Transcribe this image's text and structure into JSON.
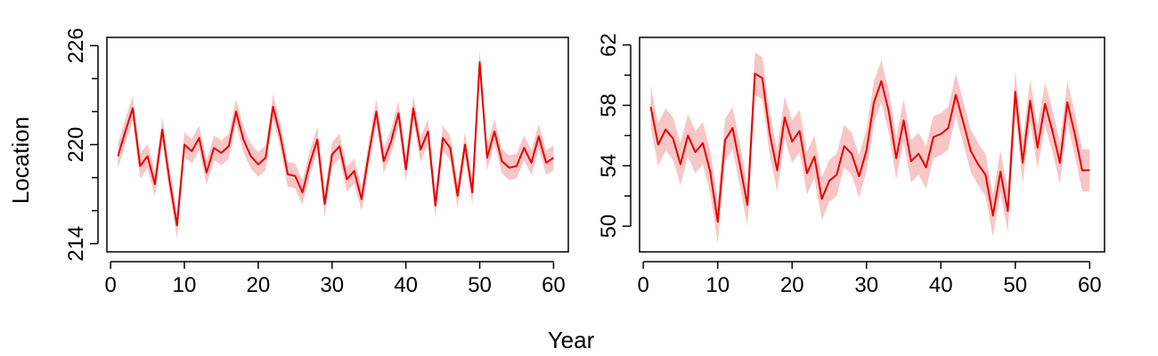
{
  "shared": {
    "xlabel": "Year",
    "ylabel": "Location"
  },
  "colors": {
    "line": "#e60000",
    "band": "#f8c6c6",
    "axis": "#000000"
  },
  "chart_data": [
    {
      "type": "line",
      "title": "",
      "xlabel": "Year",
      "ylabel": "Location",
      "xlim": [
        1,
        60
      ],
      "ylim": [
        213.5,
        226.5
      ],
      "x_ticks": [
        0,
        10,
        20,
        30,
        40,
        50,
        60
      ],
      "y_ticks_labeled": [
        214,
        220,
        226
      ],
      "y_ticks_minor": [
        216,
        218,
        222,
        224
      ],
      "grid": false,
      "band_halfwidth": 0.75,
      "series": [
        {
          "x": [
            1,
            2,
            3,
            4,
            5,
            6,
            7,
            8,
            9,
            10,
            11,
            12,
            13,
            14,
            15,
            16,
            17,
            18,
            19,
            20,
            21,
            22,
            23,
            24,
            25,
            26,
            27,
            28,
            29,
            30,
            31,
            32,
            33,
            34,
            35,
            36,
            37,
            38,
            39,
            40,
            41,
            42,
            43,
            44,
            45,
            46,
            47,
            48,
            49,
            50,
            51,
            52,
            53,
            54,
            55,
            56,
            57,
            58,
            59,
            60
          ],
          "values": [
            219.3,
            220.8,
            222.2,
            218.7,
            219.3,
            217.6,
            220.9,
            217.8,
            215.1,
            220.0,
            219.6,
            220.4,
            218.3,
            219.8,
            219.5,
            219.9,
            222.0,
            220.3,
            219.3,
            218.8,
            219.2,
            222.3,
            220.5,
            218.2,
            218.1,
            217.1,
            218.9,
            220.3,
            216.4,
            219.4,
            219.9,
            217.9,
            218.4,
            216.7,
            219.5,
            222.0,
            219.0,
            220.2,
            221.9,
            218.5,
            222.2,
            219.7,
            220.8,
            216.3,
            220.4,
            219.8,
            216.9,
            220.0,
            217.1,
            225.0,
            219.2,
            220.8,
            219.0,
            218.6,
            218.7,
            219.8,
            218.9,
            220.5,
            218.9,
            219.2
          ]
        }
      ]
    },
    {
      "type": "line",
      "title": "",
      "xlabel": "Year",
      "ylabel": "",
      "xlim": [
        1,
        60
      ],
      "ylim": [
        48.3,
        62.5
      ],
      "x_ticks": [
        0,
        10,
        20,
        30,
        40,
        50,
        60
      ],
      "y_ticks_labeled": [
        50,
        54,
        58,
        62
      ],
      "y_ticks_minor": [
        52,
        56,
        60
      ],
      "grid": false,
      "band_halfwidth": 1.4,
      "series": [
        {
          "x": [
            1,
            2,
            3,
            4,
            5,
            6,
            7,
            8,
            9,
            10,
            11,
            12,
            13,
            14,
            15,
            16,
            17,
            18,
            19,
            20,
            21,
            22,
            23,
            24,
            25,
            26,
            27,
            28,
            29,
            30,
            31,
            32,
            33,
            34,
            35,
            36,
            37,
            38,
            39,
            40,
            41,
            42,
            43,
            44,
            45,
            46,
            47,
            48,
            49,
            50,
            51,
            52,
            53,
            54,
            55,
            56,
            57,
            58,
            59,
            60
          ],
          "values": [
            57.9,
            55.4,
            56.4,
            55.8,
            54.1,
            56.0,
            54.9,
            55.5,
            53.6,
            50.3,
            55.7,
            56.5,
            54.0,
            51.4,
            60.1,
            59.8,
            56.1,
            53.7,
            57.2,
            55.6,
            56.3,
            53.5,
            54.6,
            51.8,
            53.0,
            53.4,
            55.3,
            54.8,
            53.3,
            55.0,
            58.2,
            59.6,
            57.6,
            54.5,
            57.0,
            54.3,
            54.8,
            53.9,
            55.9,
            56.1,
            56.5,
            58.7,
            56.9,
            55.0,
            54.1,
            53.4,
            50.7,
            53.6,
            51.0,
            58.9,
            54.2,
            58.3,
            55.2,
            58.1,
            56.3,
            54.2,
            58.2,
            56.1,
            53.7,
            53.7
          ]
        }
      ]
    }
  ]
}
